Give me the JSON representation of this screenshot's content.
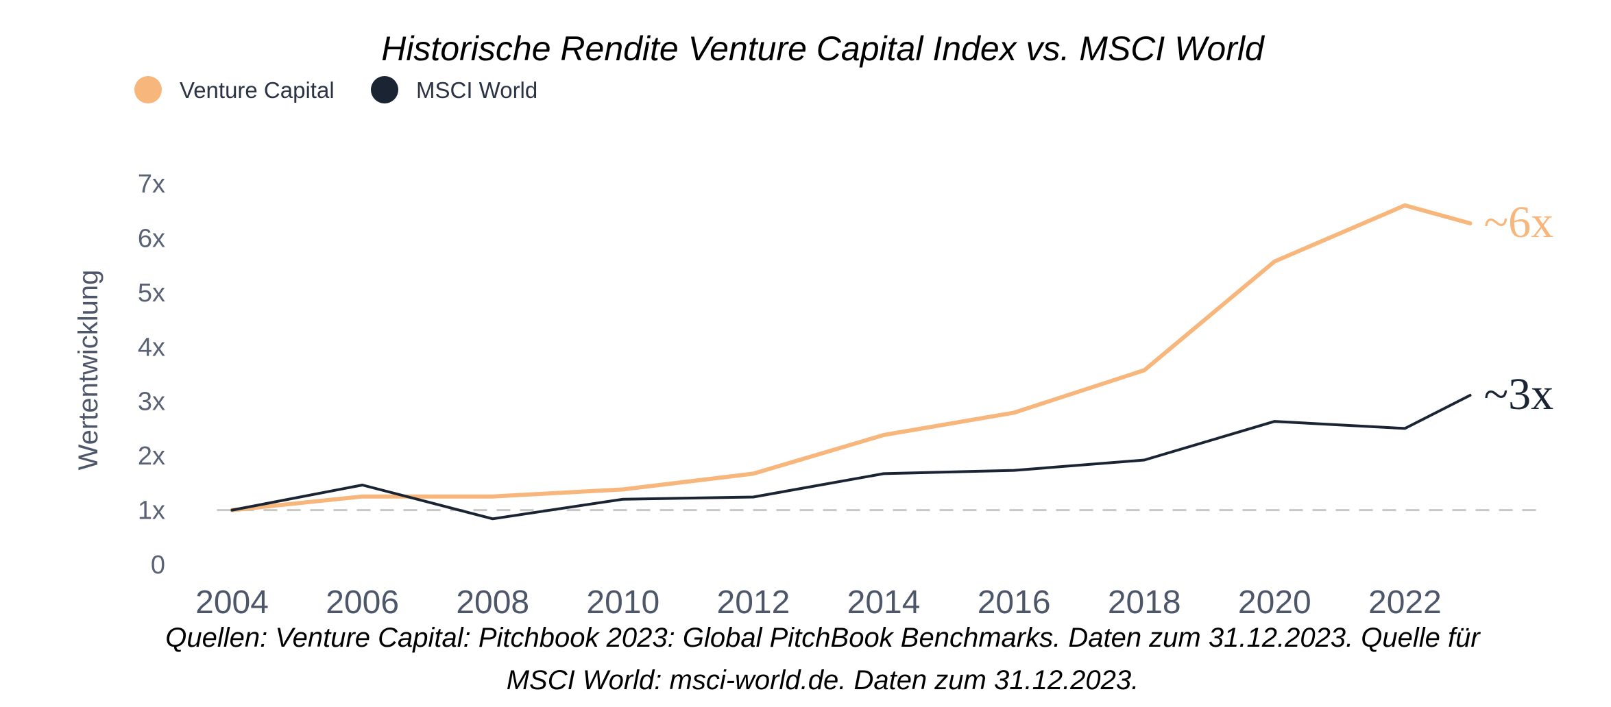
{
  "chart_data": {
    "type": "line",
    "title": "Historische Rendite Venture Capital Index vs. MSCI World",
    "ylabel": "Wertentwicklung",
    "xlabel": "",
    "x_ticks": [
      "2004",
      "2006",
      "2008",
      "2010",
      "2012",
      "2014",
      "2016",
      "2018",
      "2020",
      "2022"
    ],
    "y_ticks": [
      "0",
      "1x",
      "2x",
      "3x",
      "4x",
      "5x",
      "6x",
      "7x"
    ],
    "xlim": [
      2003.5,
      2023.5
    ],
    "ylim": [
      0,
      7
    ],
    "reference_line": 1,
    "legend_position": "top-left",
    "grid": false,
    "series": [
      {
        "name": "Venture Capital",
        "color": "#f7b77c",
        "end_label": "~6x",
        "x": [
          2004,
          2006,
          2008,
          2010,
          2012,
          2014,
          2016,
          2018,
          2020,
          2022,
          2023
        ],
        "y": [
          1.0,
          1.25,
          1.25,
          1.38,
          1.67,
          2.38,
          2.79,
          3.57,
          5.57,
          6.6,
          6.27
        ]
      },
      {
        "name": "MSCI World",
        "color": "#1a2433",
        "end_label": "~3x",
        "x": [
          2004,
          2006,
          2008,
          2010,
          2012,
          2014,
          2016,
          2018,
          2020,
          2022,
          2023
        ],
        "y": [
          1.0,
          1.46,
          0.84,
          1.2,
          1.24,
          1.67,
          1.73,
          1.92,
          2.63,
          2.5,
          3.11
        ]
      }
    ]
  },
  "source": {
    "line1": "Quellen: Venture Capital: Pitchbook 2023: Global PitchBook Benchmarks. Daten zum 31.12.2023. Quelle für",
    "line2": "MSCI World: msci-world.de. Daten zum 31.12.2023."
  }
}
